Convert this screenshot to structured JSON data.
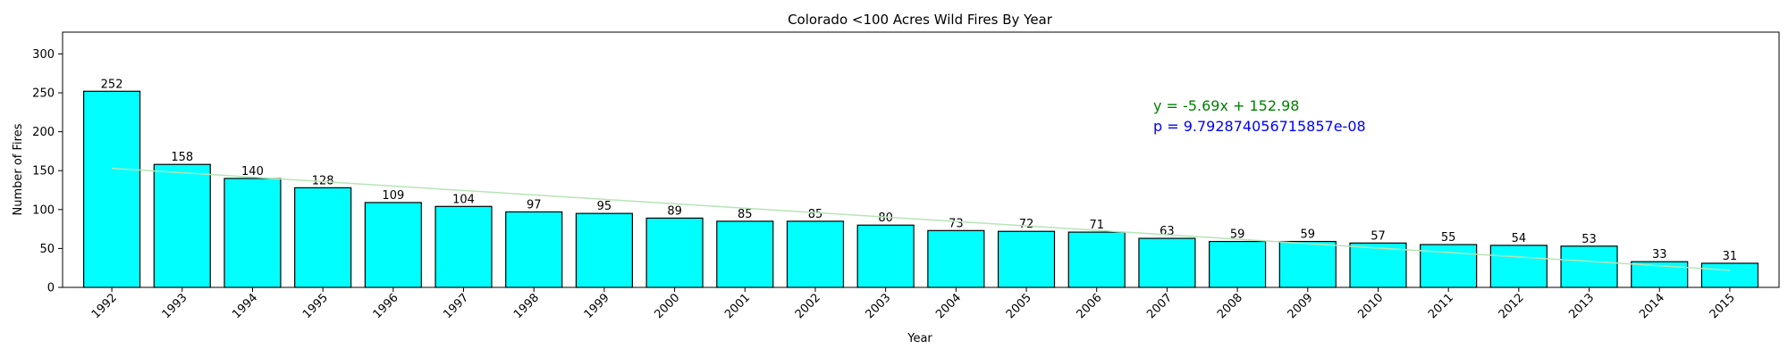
{
  "chart_data": {
    "type": "bar",
    "title": "Colorado <100 Acres Wild Fires By Year",
    "xlabel": "Year",
    "ylabel": "Number of Fires",
    "categories": [
      "1992",
      "1993",
      "1994",
      "1995",
      "1996",
      "1997",
      "1998",
      "1999",
      "2000",
      "2001",
      "2002",
      "2003",
      "2004",
      "2005",
      "2006",
      "2007",
      "2008",
      "2009",
      "2010",
      "2011",
      "2012",
      "2013",
      "2014",
      "2015"
    ],
    "values": [
      252,
      158,
      140,
      128,
      109,
      104,
      97,
      95,
      89,
      85,
      85,
      80,
      73,
      72,
      71,
      63,
      59,
      59,
      57,
      55,
      54,
      53,
      33,
      31
    ],
    "ylim": [
      0,
      328
    ],
    "yticks": [
      0,
      50,
      100,
      150,
      200,
      250,
      300
    ],
    "bar_color": "#00ffff",
    "bar_edge_color": "#000000",
    "trend": {
      "slope": -5.69,
      "intercept": 152.98,
      "color": "#b7e4b7"
    },
    "annotations": [
      {
        "text": "y = -5.69x + 152.98",
        "color": "#008000"
      },
      {
        "text": "p = 9.792874056715857e-08",
        "color": "#0000ff"
      }
    ],
    "grid": false,
    "legend": "none"
  }
}
